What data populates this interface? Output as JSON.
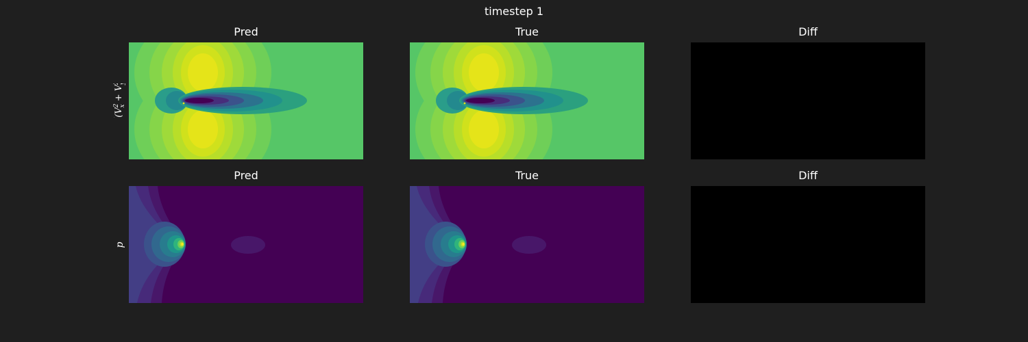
{
  "suptitle": "timestep 1",
  "rows": [
    {
      "ylabel_math": "sqrt(Vx^2 + Vy^2)",
      "panels": [
        {
          "title": "Pred",
          "field": "speed"
        },
        {
          "title": "True",
          "field": "speed"
        },
        {
          "title": "Diff",
          "field": "zero"
        }
      ]
    },
    {
      "ylabel": "p",
      "panels": [
        {
          "title": "Pred",
          "field": "pressure"
        },
        {
          "title": "True",
          "field": "pressure"
        },
        {
          "title": "Diff",
          "field": "zero"
        }
      ]
    }
  ],
  "chart_data": [
    {
      "type": "heatmap",
      "title": "Pred",
      "colormap": "viridis",
      "row_label": "sqrt(Vx^2 + Vy^2)"
    },
    {
      "type": "heatmap",
      "title": "True",
      "colormap": "viridis",
      "row_label": "sqrt(Vx^2 + Vy^2)"
    },
    {
      "type": "heatmap",
      "title": "Diff",
      "colormap": "black",
      "row_label": "sqrt(Vx^2 + Vy^2)"
    },
    {
      "type": "heatmap",
      "title": "Pred",
      "colormap": "viridis",
      "row_label": "p"
    },
    {
      "type": "heatmap",
      "title": "True",
      "colormap": "viridis",
      "row_label": "p"
    },
    {
      "type": "heatmap",
      "title": "Diff",
      "colormap": "black",
      "row_label": "p"
    }
  ],
  "colors": {
    "background": "#1f1f1f",
    "viridis_dark": "#440154",
    "viridis_bright": "#fde725",
    "diff": "#000000"
  }
}
